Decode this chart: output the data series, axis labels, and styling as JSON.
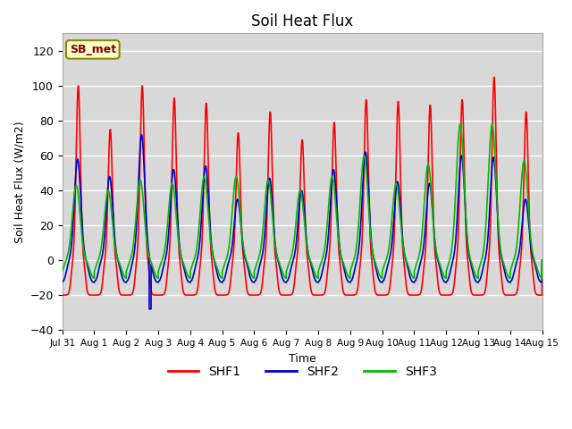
{
  "title": "Soil Heat Flux",
  "ylabel": "Soil Heat Flux (W/m2)",
  "xlabel": "Time",
  "ylim": [
    -40,
    130
  ],
  "yticks": [
    -40,
    -20,
    0,
    20,
    40,
    60,
    80,
    100,
    120
  ],
  "xtick_labels": [
    "Jul 31",
    "Aug 1",
    "Aug 2",
    "Aug 3",
    "Aug 4",
    "Aug 5",
    "Aug 6",
    "Aug 7",
    "Aug 8",
    "Aug 9",
    "Aug 10",
    "Aug 11",
    "Aug 12",
    "Aug 13",
    "Aug 14",
    "Aug 15"
  ],
  "colors": {
    "SHF1": "#ff0000",
    "SHF2": "#0000cc",
    "SHF3": "#00bb00"
  },
  "linewidths": {
    "SHF1": 1.2,
    "SHF2": 1.2,
    "SHF3": 1.2
  },
  "plot_bg_color": "#d8d8d8",
  "grid_color": "#ffffff",
  "legend_label": "SB_met",
  "legend_bg": "#ffffcc",
  "legend_edge": "#888800",
  "peaks_shf1": [
    100,
    75,
    100,
    93,
    90,
    73,
    85,
    69,
    79,
    92,
    91,
    89,
    92,
    105,
    85
  ],
  "peaks_shf2": [
    58,
    48,
    72,
    52,
    54,
    35,
    47,
    40,
    52,
    62,
    45,
    44,
    60,
    59,
    35
  ],
  "peaks_shf3": [
    43,
    40,
    46,
    44,
    48,
    48,
    46,
    40,
    48,
    60,
    44,
    55,
    78,
    78,
    57
  ],
  "night_shf1": -20,
  "night_shf2": -13,
  "night_shf3": -11,
  "shf2_aug3_dip": -28
}
